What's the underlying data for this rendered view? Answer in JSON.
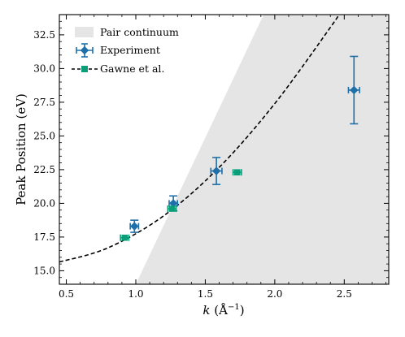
{
  "chart_data": {
    "type": "scatter",
    "xlabel": "k (Å⁻¹)",
    "xlabel_parts": {
      "symbol": "k",
      "unit_open": " (Å",
      "unit_exp": "−1",
      "unit_close": ")"
    },
    "ylabel": "Peak Position (eV)",
    "xlim": [
      0.45,
      2.82
    ],
    "ylim": [
      14.0,
      34.0
    ],
    "x_ticks": [
      0.5,
      1.0,
      1.5,
      2.0,
      2.5
    ],
    "x_tick_labels": [
      "0.5",
      "1.0",
      "1.5",
      "2.0",
      "2.5"
    ],
    "y_ticks": [
      15.0,
      17.5,
      20.0,
      22.5,
      25.0,
      27.5,
      30.0,
      32.5
    ],
    "y_tick_labels": [
      "15.0",
      "17.5",
      "20.0",
      "22.5",
      "25.0",
      "27.5",
      "30.0",
      "32.5"
    ],
    "grid": false,
    "legend_position": "top-left",
    "legend": [
      {
        "label": "Pair continuum",
        "kind": "patch"
      },
      {
        "label": "Experiment",
        "kind": "errorbar-diamond"
      },
      {
        "label": "Gawne et al.",
        "kind": "dashed-line-square"
      }
    ],
    "colors": {
      "experiment": "#1f6fa8",
      "gawne": "#0b9e78",
      "continuum": "#e5e5e5",
      "fit_line": "#000000"
    },
    "pair_continuum": {
      "lower_edge": [
        [
          1.0,
          14.0
        ],
        [
          1.92,
          34.0
        ]
      ],
      "fill": "right of edge"
    },
    "series": [
      {
        "name": "Experiment",
        "marker": "diamond",
        "points": [
          {
            "x": 0.99,
            "y": 18.3,
            "yerr": 0.45,
            "xerr": 0.03
          },
          {
            "x": 1.27,
            "y": 20.0,
            "yerr": 0.55,
            "xerr": 0.03
          },
          {
            "x": 1.58,
            "y": 22.4,
            "yerr": 1.0,
            "xerr": 0.04
          },
          {
            "x": 2.57,
            "y": 28.4,
            "yerr": 2.5,
            "xerr": 0.04
          }
        ]
      },
      {
        "name": "Gawne et al.",
        "marker": "square",
        "points": [
          {
            "x": 0.92,
            "y": 17.45,
            "xerr": 0.03
          },
          {
            "x": 1.26,
            "y": 19.6,
            "xerr": 0.03
          },
          {
            "x": 1.73,
            "y": 22.3,
            "xerr": 0.03
          }
        ]
      },
      {
        "name": "Gawne et al. dashed curve",
        "type": "line",
        "points": [
          {
            "x": 0.45,
            "y": 15.65
          },
          {
            "x": 0.8,
            "y": 16.7
          },
          {
            "x": 1.2,
            "y": 19.07
          },
          {
            "x": 1.6,
            "y": 22.67
          },
          {
            "x": 2.0,
            "y": 27.4
          },
          {
            "x": 2.4,
            "y": 33.05
          },
          {
            "x": 2.46,
            "y": 34.0
          }
        ]
      }
    ]
  }
}
